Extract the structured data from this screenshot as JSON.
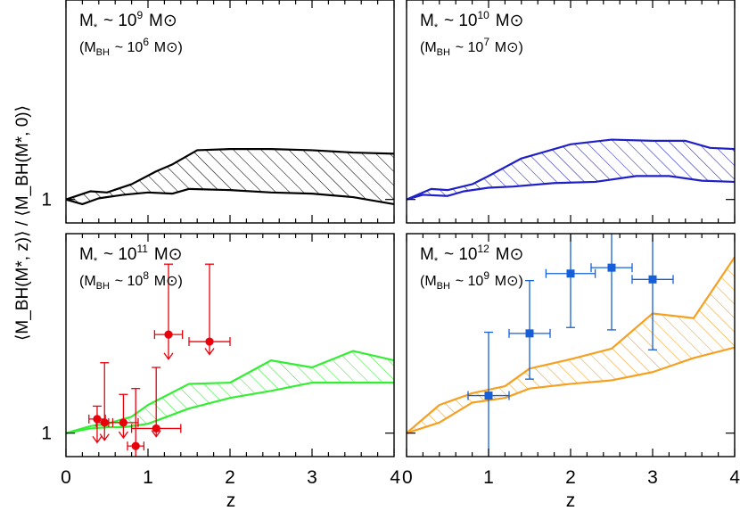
{
  "figure": {
    "ylabel": "⟨M_BH(M*, z)⟩ / ⟨M_BH(M*, 0)⟩",
    "xlabel": "z",
    "xticks": [
      0,
      1,
      2,
      3,
      4
    ]
  },
  "chart_data": [
    {
      "type": "area",
      "panel": "top-left",
      "label_main": "M* ~ 10^9 M⊙",
      "label_sub": "(M_BH ~ 10^6 M⊙)",
      "xlim": [
        0,
        4
      ],
      "ylim": [
        0.8,
        2.7
      ],
      "yticks": [
        1
      ],
      "color": "#000000",
      "upper": {
        "x": [
          0,
          0.3,
          0.5,
          0.8,
          1.1,
          1.3,
          1.6,
          2.0,
          2.5,
          3.0,
          3.5,
          4.0
        ],
        "y": [
          1.0,
          1.07,
          1.06,
          1.13,
          1.24,
          1.3,
          1.42,
          1.43,
          1.43,
          1.42,
          1.4,
          1.39
        ]
      },
      "lower": {
        "x": [
          0,
          0.2,
          0.4,
          0.7,
          1.0,
          1.3,
          1.5,
          2.0,
          2.5,
          3.0,
          3.5,
          4.0
        ],
        "y": [
          1.0,
          0.96,
          1.01,
          1.04,
          1.06,
          1.05,
          1.09,
          1.08,
          1.06,
          1.05,
          1.02,
          0.96
        ]
      }
    },
    {
      "type": "area",
      "panel": "top-right",
      "label_main": "M* ~ 10^10 M⊙",
      "label_sub": "(M_BH ~ 10^7 M⊙)",
      "xlim": [
        0,
        4
      ],
      "ylim": [
        0.8,
        2.7
      ],
      "yticks": [
        1
      ],
      "color": "#2020c8",
      "upper": {
        "x": [
          0,
          0.3,
          0.5,
          0.8,
          1.0,
          1.4,
          2.0,
          2.5,
          3.0,
          3.4,
          3.7,
          4.0
        ],
        "y": [
          1.0,
          1.09,
          1.08,
          1.13,
          1.2,
          1.35,
          1.47,
          1.51,
          1.5,
          1.5,
          1.44,
          1.43
        ]
      },
      "lower": {
        "x": [
          0,
          0.2,
          0.5,
          0.7,
          1.0,
          1.3,
          1.8,
          2.3,
          2.8,
          3.2,
          3.6,
          4.0
        ],
        "y": [
          1.0,
          1.04,
          1.03,
          1.07,
          1.1,
          1.11,
          1.14,
          1.15,
          1.2,
          1.2,
          1.16,
          1.15
        ]
      }
    },
    {
      "type": "area",
      "panel": "bottom-left",
      "label_main": "M* ~ 10^11 M⊙",
      "label_sub": "(M_BH ~ 10^8 M⊙)",
      "xlim": [
        0,
        4
      ],
      "ylim": [
        0.8,
        2.7
      ],
      "yticks": [
        1
      ],
      "color": "#33ee33",
      "upper": {
        "x": [
          0,
          0.3,
          0.5,
          0.8,
          1.0,
          1.5,
          2.0,
          2.5,
          3.0,
          3.5,
          4.0
        ],
        "y": [
          1.0,
          1.06,
          1.08,
          1.14,
          1.24,
          1.42,
          1.43,
          1.62,
          1.56,
          1.7,
          1.62
        ]
      },
      "lower": {
        "x": [
          0,
          0.3,
          0.5,
          0.7,
          1.0,
          1.5,
          2.0,
          2.5,
          3.0,
          3.5,
          4.0
        ],
        "y": [
          1.0,
          1.04,
          1.05,
          1.05,
          1.08,
          1.21,
          1.3,
          1.36,
          1.43,
          1.43,
          1.43
        ]
      },
      "points": {
        "color": "#e8000b",
        "upper_limit": true,
        "x": [
          0.38,
          0.47,
          0.7,
          0.85,
          1.1,
          1.25,
          1.75
        ],
        "y": [
          1.12,
          1.09,
          1.09,
          0.89,
          1.04,
          1.84,
          1.78
        ],
        "xerr": [
          0.1,
          0.1,
          0.18,
          0.1,
          0.3,
          0.17,
          0.25
        ],
        "yup": [
          1.23,
          1.6,
          1.33,
          1.38,
          1.56,
          2.44,
          2.44
        ],
        "ylo": [
          0.92,
          0.94,
          0.96,
          0.75,
          0.97,
          1.63,
          1.67
        ]
      }
    },
    {
      "type": "area",
      "panel": "bottom-right",
      "label_main": "M* ~ 10^12 M⊙",
      "label_sub": "(M_BH ~ 10^9 M⊙)",
      "xlim": [
        0,
        4
      ],
      "ylim": [
        0.8,
        2.7
      ],
      "yticks": [
        1
      ],
      "color": "#f5a020",
      "upper": {
        "x": [
          0,
          0.4,
          0.8,
          1.2,
          1.5,
          2.0,
          2.5,
          3.0,
          3.5,
          4.0
        ],
        "y": [
          1.0,
          1.24,
          1.34,
          1.4,
          1.55,
          1.63,
          1.72,
          2.02,
          1.98,
          2.5
        ]
      },
      "lower": {
        "x": [
          0,
          0.4,
          0.8,
          1.2,
          1.5,
          2.0,
          2.5,
          3.0,
          3.5,
          4.0
        ],
        "y": [
          1.0,
          1.09,
          1.26,
          1.3,
          1.38,
          1.42,
          1.45,
          1.52,
          1.64,
          1.73
        ]
      },
      "points": {
        "color": "#1560d8",
        "upper_limit": false,
        "x": [
          1.0,
          1.5,
          2.0,
          2.5,
          3.0
        ],
        "y": [
          1.32,
          1.85,
          2.36,
          2.41,
          2.31
        ],
        "xerr": [
          0.25,
          0.25,
          0.3,
          0.25,
          0.25
        ],
        "yup": [
          1.86,
          2.3,
          2.78,
          2.78,
          2.74
        ],
        "ylo": [
          0.74,
          1.46,
          1.9,
          1.88,
          1.71
        ]
      }
    }
  ]
}
